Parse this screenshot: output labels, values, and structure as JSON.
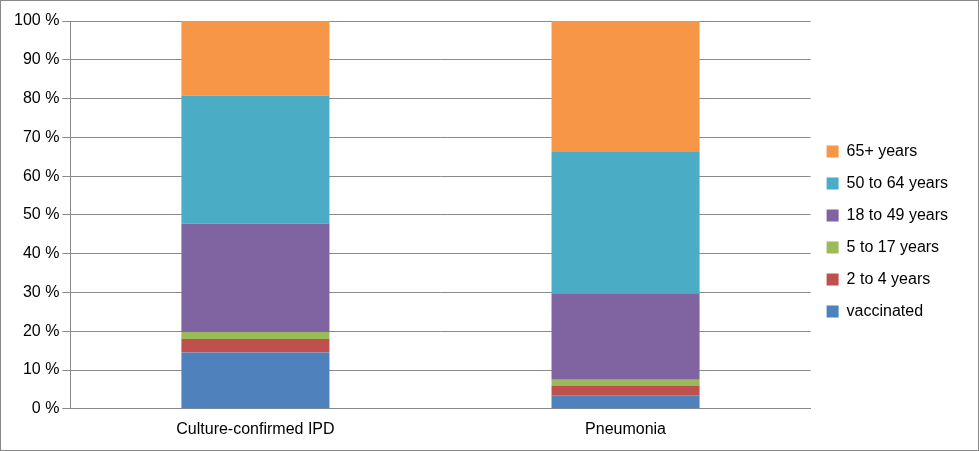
{
  "chart_data": {
    "type": "bar",
    "stacked": true,
    "grid": true,
    "legend": "right",
    "categories": [
      "Culture-confirmed IPD",
      "Pneumonia"
    ],
    "series": [
      {
        "name": "vaccinated",
        "color": "#4f81bd",
        "values": [
          14.5,
          3.5
        ]
      },
      {
        "name": "2 to 4 years",
        "color": "#c0504d",
        "values": [
          3.5,
          2.5
        ]
      },
      {
        "name": "5 to 17 years",
        "color": "#9bbb59",
        "values": [
          1.8,
          1.5
        ]
      },
      {
        "name": "18 to 49 years",
        "color": "#8064a2",
        "values": [
          27.9,
          22.3
        ]
      },
      {
        "name": "50 to 64 years",
        "color": "#4bacc6",
        "values": [
          33.1,
          36.4
        ]
      },
      {
        "name": "65+ years",
        "color": "#f79646",
        "values": [
          19.2,
          33.8
        ]
      }
    ],
    "ylim": [
      0,
      100
    ],
    "yticks": [
      {
        "value": 0,
        "label": "0 %"
      },
      {
        "value": 10,
        "label": "10 %"
      },
      {
        "value": 20,
        "label": "20 %"
      },
      {
        "value": 30,
        "label": "30 %"
      },
      {
        "value": 40,
        "label": "40 %"
      },
      {
        "value": 50,
        "label": "50 %"
      },
      {
        "value": 60,
        "label": "60 %"
      },
      {
        "value": 70,
        "label": "70 %"
      },
      {
        "value": 80,
        "label": "80 %"
      },
      {
        "value": 90,
        "label": "90 %"
      },
      {
        "value": 100,
        "label": "100 %"
      }
    ]
  }
}
